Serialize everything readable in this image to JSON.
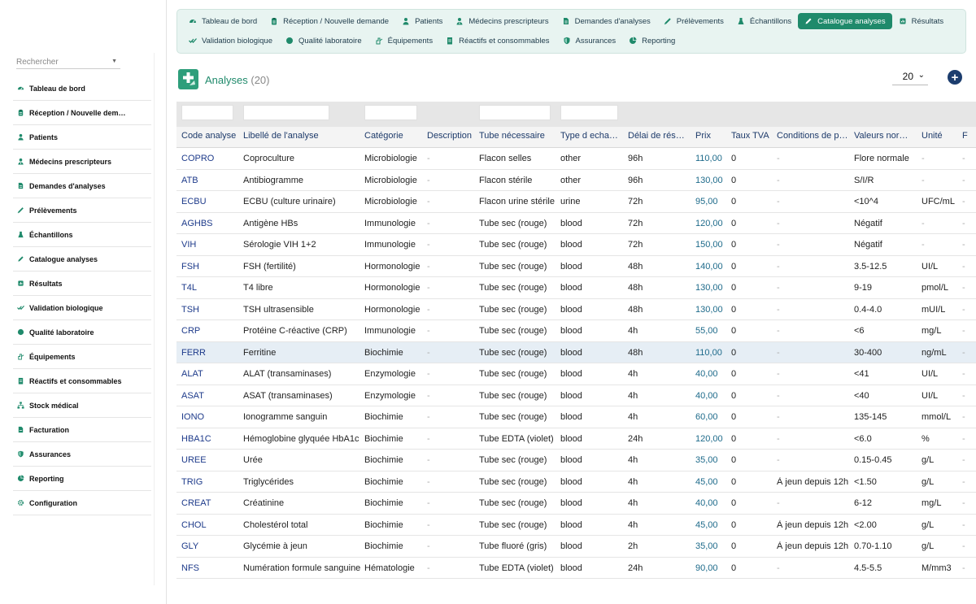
{
  "sidebar": {
    "search_placeholder": "Rechercher",
    "items": [
      {
        "label": "Tableau de bord",
        "icon": "dashboard-icon"
      },
      {
        "label": "Réception / Nouvelle dem…",
        "icon": "clipboard-icon"
      },
      {
        "label": "Patients",
        "icon": "user-icon"
      },
      {
        "label": "Médecins prescripteurs",
        "icon": "doctor-icon"
      },
      {
        "label": "Demandes d'analyses",
        "icon": "file-icon"
      },
      {
        "label": "Prélèvements",
        "icon": "syringe-icon"
      },
      {
        "label": "Échantillons",
        "icon": "flask-icon"
      },
      {
        "label": "Catalogue analyses",
        "icon": "pen-icon"
      },
      {
        "label": "Résultats",
        "icon": "poll-icon"
      },
      {
        "label": "Validation biologique",
        "icon": "check-double-icon"
      },
      {
        "label": "Qualité laboratoire",
        "icon": "badge-icon"
      },
      {
        "label": "Équipements",
        "icon": "tools-icon"
      },
      {
        "label": "Réactifs et consommables",
        "icon": "box-icon"
      },
      {
        "label": "Stock médical",
        "icon": "sitemap-icon"
      },
      {
        "label": "Facturation",
        "icon": "invoice-icon"
      },
      {
        "label": "Assurances",
        "icon": "shield-icon"
      },
      {
        "label": "Reporting",
        "icon": "chart-pie-icon"
      },
      {
        "label": "Configuration",
        "icon": "gear-icon"
      }
    ]
  },
  "topnav": {
    "row1": [
      {
        "label": "Tableau de bord",
        "icon": "dashboard-icon",
        "active": false
      },
      {
        "label": "Réception / Nouvelle demande",
        "icon": "clipboard-icon",
        "active": false
      },
      {
        "label": "Patients",
        "icon": "user-icon",
        "active": false
      },
      {
        "label": "Médecins prescripteurs",
        "icon": "doctor-icon",
        "active": false
      },
      {
        "label": "Demandes d'analyses",
        "icon": "file-icon",
        "active": false
      },
      {
        "label": "Prélèvements",
        "icon": "syringe-icon",
        "active": false
      },
      {
        "label": "Échantillons",
        "icon": "flask-icon",
        "active": false
      },
      {
        "label": "Catalogue analyses",
        "icon": "pen-icon",
        "active": true
      },
      {
        "label": "Résultats",
        "icon": "poll-icon",
        "active": false
      }
    ],
    "row2": [
      {
        "label": "Validation biologique",
        "icon": "check-double-icon",
        "active": false
      },
      {
        "label": "Qualité laboratoire",
        "icon": "badge-icon",
        "active": false
      },
      {
        "label": "Équipements",
        "icon": "tools-icon",
        "active": false
      },
      {
        "label": "Réactifs et consommables",
        "icon": "box-icon",
        "active": false
      },
      {
        "label": "Assurances",
        "icon": "shield-icon",
        "active": false
      },
      {
        "label": "Reporting",
        "icon": "chart-pie-icon",
        "active": false
      }
    ]
  },
  "header": {
    "title": "Analyses",
    "count": "(20)",
    "page_size": "20",
    "add_label": "+"
  },
  "table": {
    "columns": [
      "Code analyse",
      "Libellé de l'analyse",
      "Catégorie",
      "Description",
      "Tube nécessaire",
      "Type d echa…",
      "Délai de rés…",
      "Prix",
      "Taux TVA",
      "Conditions de p…",
      "Valeurs nor…",
      "Unité",
      "F"
    ],
    "rows": [
      [
        "COPRO",
        "Coproculture",
        "Microbiologie",
        "-",
        "Flacon selles",
        "other",
        "96h",
        "110,00",
        "0",
        "-",
        "Flore normale",
        "-",
        "-"
      ],
      [
        "ATB",
        "Antibiogramme",
        "Microbiologie",
        "-",
        "Flacon stérile",
        "other",
        "96h",
        "130,00",
        "0",
        "-",
        "S/I/R",
        "-",
        "-"
      ],
      [
        "ECBU",
        "ECBU (culture urinaire)",
        "Microbiologie",
        "-",
        "Flacon urine stérile",
        "urine",
        "72h",
        "95,00",
        "0",
        "-",
        "<10^4",
        "UFC/mL",
        "-"
      ],
      [
        "AGHBS",
        "Antigène HBs",
        "Immunologie",
        "-",
        "Tube sec (rouge)",
        "blood",
        "72h",
        "120,00",
        "0",
        "-",
        "Négatif",
        "-",
        "-"
      ],
      [
        "VIH",
        "Sérologie VIH 1+2",
        "Immunologie",
        "-",
        "Tube sec (rouge)",
        "blood",
        "72h",
        "150,00",
        "0",
        "-",
        "Négatif",
        "-",
        "-"
      ],
      [
        "FSH",
        "FSH (fertilité)",
        "Hormonologie",
        "-",
        "Tube sec (rouge)",
        "blood",
        "48h",
        "140,00",
        "0",
        "-",
        "3.5-12.5",
        "UI/L",
        "-"
      ],
      [
        "T4L",
        "T4 libre",
        "Hormonologie",
        "-",
        "Tube sec (rouge)",
        "blood",
        "48h",
        "130,00",
        "0",
        "-",
        "9-19",
        "pmol/L",
        "-"
      ],
      [
        "TSH",
        "TSH ultrasensible",
        "Hormonologie",
        "-",
        "Tube sec (rouge)",
        "blood",
        "48h",
        "130,00",
        "0",
        "-",
        "0.4-4.0",
        "mUI/L",
        "-"
      ],
      [
        "CRP",
        "Protéine C-réactive (CRP)",
        "Immunologie",
        "-",
        "Tube sec (rouge)",
        "blood",
        "4h",
        "55,00",
        "0",
        "-",
        "<6",
        "mg/L",
        "-"
      ],
      [
        "FERR",
        "Ferritine",
        "Biochimie",
        "-",
        "Tube sec (rouge)",
        "blood",
        "48h",
        "110,00",
        "0",
        "-",
        "30-400",
        "ng/mL",
        "-"
      ],
      [
        "ALAT",
        "ALAT (transaminases)",
        "Enzymologie",
        "-",
        "Tube sec (rouge)",
        "blood",
        "4h",
        "40,00",
        "0",
        "-",
        "<41",
        "UI/L",
        "-"
      ],
      [
        "ASAT",
        "ASAT (transaminases)",
        "Enzymologie",
        "-",
        "Tube sec (rouge)",
        "blood",
        "4h",
        "40,00",
        "0",
        "-",
        "<40",
        "UI/L",
        "-"
      ],
      [
        "IONO",
        "Ionogramme sanguin",
        "Biochimie",
        "-",
        "Tube sec (rouge)",
        "blood",
        "4h",
        "60,00",
        "0",
        "-",
        "135-145",
        "mmol/L",
        "-"
      ],
      [
        "HBA1C",
        "Hémoglobine glyquée HbA1c",
        "Biochimie",
        "-",
        "Tube EDTA (violet)",
        "blood",
        "24h",
        "120,00",
        "0",
        "-",
        "<6.0",
        "%",
        "-"
      ],
      [
        "UREE",
        "Urée",
        "Biochimie",
        "-",
        "Tube sec (rouge)",
        "blood",
        "4h",
        "35,00",
        "0",
        "-",
        "0.15-0.45",
        "g/L",
        "-"
      ],
      [
        "TRIG",
        "Triglycérides",
        "Biochimie",
        "-",
        "Tube sec (rouge)",
        "blood",
        "4h",
        "45,00",
        "0",
        "À jeun depuis 12h",
        "<1.50",
        "g/L",
        "-"
      ],
      [
        "CREAT",
        "Créatinine",
        "Biochimie",
        "-",
        "Tube sec (rouge)",
        "blood",
        "4h",
        "40,00",
        "0",
        "-",
        "6-12",
        "mg/L",
        "-"
      ],
      [
        "CHOL",
        "Cholestérol total",
        "Biochimie",
        "-",
        "Tube sec (rouge)",
        "blood",
        "4h",
        "45,00",
        "0",
        "À jeun depuis 12h",
        "<2.00",
        "g/L",
        "-"
      ],
      [
        "GLY",
        "Glycémie à jeun",
        "Biochimie",
        "-",
        "Tube fluoré (gris)",
        "blood",
        "2h",
        "35,00",
        "0",
        "À jeun depuis 12h",
        "0.70-1.10",
        "g/L",
        "-"
      ],
      [
        "NFS",
        "Numération formule sanguine",
        "Hématologie",
        "-",
        "Tube EDTA (violet)",
        "blood",
        "24h",
        "90,00",
        "0",
        "-",
        "4.5-5.5",
        "M/mm3",
        "-"
      ]
    ],
    "highlighted_row": 9
  },
  "colors": {
    "accent": "#1f8a6b",
    "nav_bg": "#e8f4f1",
    "link": "#1d3a8a",
    "add_button": "#1c3d6e"
  }
}
